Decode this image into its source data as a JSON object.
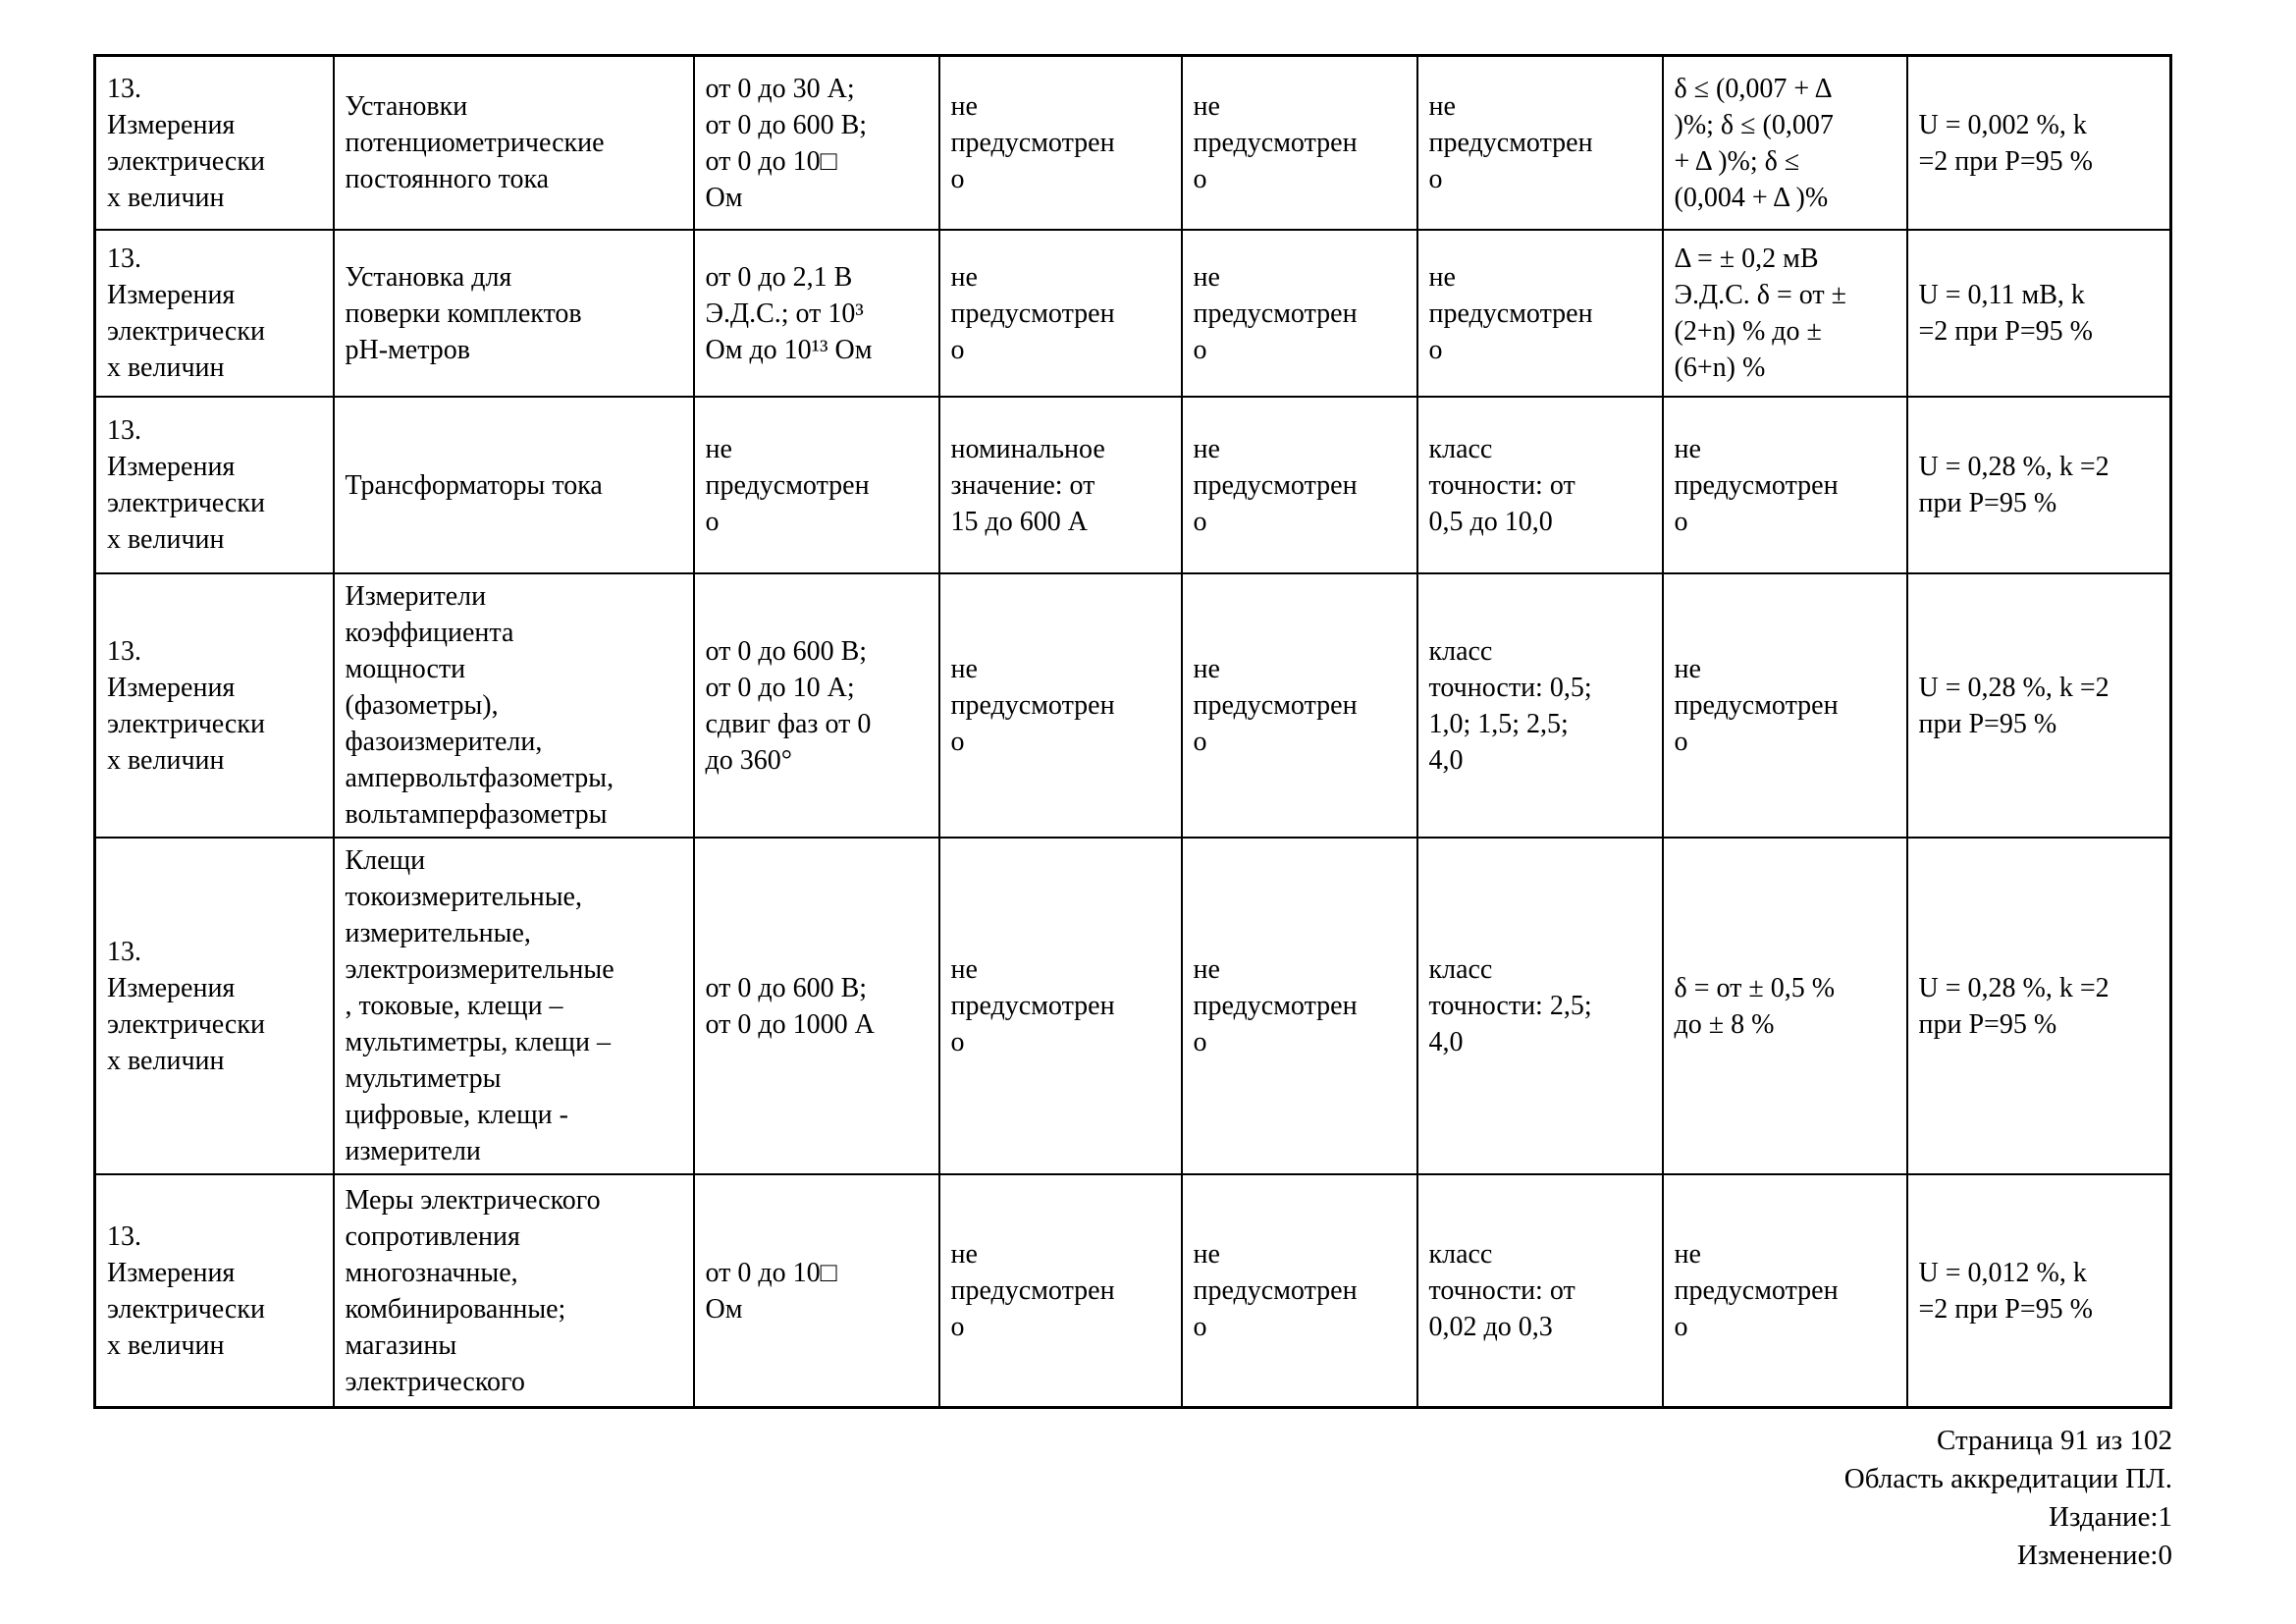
{
  "document": {
    "colors": {
      "text": "#000000",
      "background": "#ffffff",
      "grid": "#000000"
    },
    "table": {
      "rows": [
        {
          "cells": [
            "13.\nИзмерения\nэлектрически\nх величин",
            "Установки\nпотенциометрические\nпостоянного тока",
            "от 0 до 30 А;\nот 0 до 600 В;\nот 0 до 10□\nОм",
            "не\nпредусмотрен\nо",
            "не\nпредусмотрен\nо",
            "не\nпредусмотрен\nо",
            "δ ≤ (0,007 + Δ\n)%; δ ≤ (0,007\n+ Δ )%; δ ≤\n(0,004 + Δ )%",
            "U = 0,002 %, k\n=2 при Р=95 %"
          ]
        },
        {
          "cells": [
            "13.\nИзмерения\nэлектрически\nх величин",
            "Установка для\nповерки комплектов\nрН-метров",
            "от 0 до 2,1 В\nЭ.Д.С.; от 10³\nОм до 10¹³ Ом",
            "не\nпредусмотрен\nо",
            "не\nпредусмотрен\nо",
            "не\nпредусмотрен\nо",
            "Δ = ± 0,2 мВ\nЭ.Д.С. δ = от ±\n(2+n) % до ±\n(6+n) %",
            "U = 0,11 мВ, k\n=2 при Р=95 %"
          ]
        },
        {
          "cells": [
            "13.\nИзмерения\nэлектрически\nх величин",
            "Трансформаторы тока",
            "не\nпредусмотрен\nо",
            "номинальное\nзначение: от\n15 до 600 А",
            "не\nпредусмотрен\nо",
            "класс\nточности: от\n0,5 до 10,0",
            "не\nпредусмотрен\nо",
            "U = 0,28 %, k =2\nпри Р=95 %"
          ]
        },
        {
          "cells": [
            "13.\nИзмерения\nэлектрически\nх величин",
            "Измерители\nкоэффициента\nмощности\n(фазометры),\nфазоизмерители,\nампервольтфазометры,\nвольтамперфазометры",
            "от 0 до 600 В;\nот 0 до 10 А;\nсдвиг фаз от 0\nдо 360°",
            "не\nпредусмотрен\nо",
            "не\nпредусмотрен\nо",
            "класс\nточности: 0,5;\n1,0; 1,5; 2,5;\n4,0",
            "не\nпредусмотрен\nо",
            "U = 0,28 %, k =2\nпри Р=95 %"
          ]
        },
        {
          "cells": [
            "13.\nИзмерения\nэлектрически\nх величин",
            "Клещи\nтокоизмерительные,\nизмерительные,\nэлектроизмерительные\n, токовые, клещи –\nмультиметры, клещи –\nмультиметры\nцифровые, клещи -\nизмерители",
            "от 0 до 600 В;\nот 0 до 1000 А",
            "не\nпредусмотрен\nо",
            "не\nпредусмотрен\nо",
            "класс\nточности: 2,5;\n4,0",
            "δ = от ± 0,5 %\nдо ± 8 %",
            "U = 0,28 %, k =2\nпри Р=95 %"
          ]
        },
        {
          "cells": [
            "13.\nИзмерения\nэлектрически\nх величин",
            "Меры электрического\nсопротивления\nмногозначные,\nкомбинированные;\nмагазины\nэлектрического",
            "от 0 до 10□\nОм",
            "не\nпредусмотрен\nо",
            "не\nпредусмотрен\nо",
            "класс\nточности: от\n0,02 до 0,3",
            "не\nпредусмотрен\nо",
            "U = 0,012 %, k\n=2 при Р=95 %"
          ]
        }
      ]
    },
    "footer": {
      "lines": [
        "Страница 91 из 102",
        "Область аккредитации ПЛ.",
        "Издание:1",
        "Изменение:0"
      ]
    }
  }
}
